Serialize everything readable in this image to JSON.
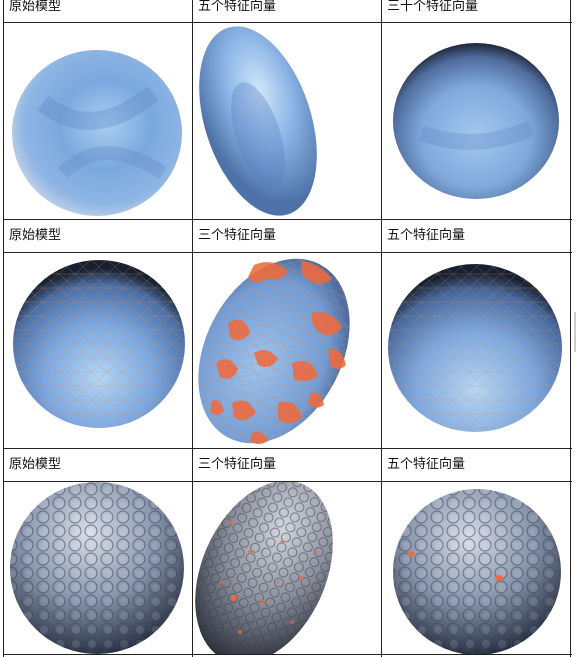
{
  "rows": [
    {
      "captions": [
        "原始模型",
        "五个特征向量",
        "三十个特征向量"
      ],
      "images": [
        {
          "name": "original-model-smooth-sphere",
          "texture": "smooth",
          "highlight": "none"
        },
        {
          "name": "five-eigenvector-smooth-ellipsoid",
          "texture": "smooth",
          "highlight": "none"
        },
        {
          "name": "thirty-eigenvector-smooth-sphere",
          "texture": "smooth",
          "highlight": "none"
        }
      ]
    },
    {
      "captions": [
        "原始模型",
        "三个特征向量",
        "五个特征向量"
      ],
      "images": [
        {
          "name": "original-model-mesh-sphere",
          "texture": "mesh",
          "highlight": "none"
        },
        {
          "name": "three-eigenvector-mesh-ellipsoid",
          "texture": "mesh",
          "highlight": "heavy"
        },
        {
          "name": "five-eigenvector-mesh-sphere",
          "texture": "mesh",
          "highlight": "none"
        }
      ]
    },
    {
      "captions": [
        "原始模型",
        "三个特征向量",
        "五个特征向量"
      ],
      "images": [
        {
          "name": "original-model-golf-ball",
          "texture": "dimpled",
          "highlight": "none"
        },
        {
          "name": "three-eigenvector-golf-ball",
          "texture": "dimpled",
          "highlight": "scattered"
        },
        {
          "name": "five-eigenvector-golf-ball",
          "texture": "dimpled",
          "highlight": "few"
        }
      ]
    }
  ],
  "colors": {
    "sphere_light": "#b8d8f4",
    "sphere_mid": "#6f9fd8",
    "sphere_dark": "#23304a",
    "golf_light": "#d4dae6",
    "golf_dark": "#2c3548",
    "highlight": "#ef6a3e",
    "grid_line": "#222222"
  }
}
